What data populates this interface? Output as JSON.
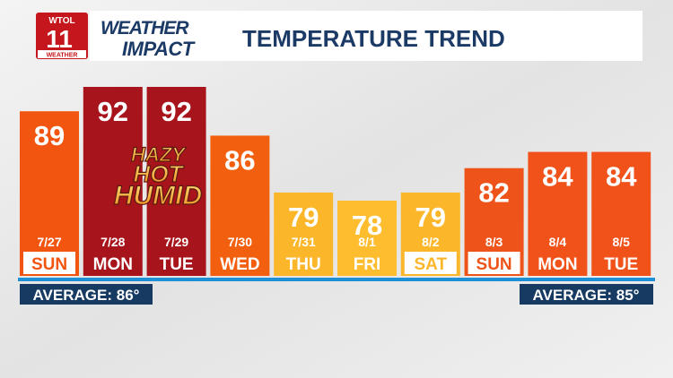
{
  "chart_data": {
    "type": "bar",
    "title": "TEMPERATURE TREND",
    "logo": {
      "station": "WTOL",
      "channel": "11",
      "sub": "WEATHER"
    },
    "brand": [
      "WEATHER",
      "IMPACT"
    ],
    "categories": [
      "7/27",
      "7/28",
      "7/29",
      "7/30",
      "7/31",
      "8/1",
      "8/2",
      "8/3",
      "8/4",
      "8/5"
    ],
    "days": [
      "SUN",
      "MON",
      "TUE",
      "WED",
      "THU",
      "FRI",
      "SAT",
      "SUN",
      "MON",
      "TUE"
    ],
    "boxed": [
      true,
      false,
      false,
      false,
      false,
      false,
      true,
      true,
      false,
      false
    ],
    "values": [
      89,
      92,
      92,
      86,
      79,
      78,
      79,
      82,
      84,
      84
    ],
    "colors": [
      "#f25510",
      "#a8141b",
      "#a8141b",
      "#f2600f",
      "#fcb62a",
      "#fdbd2f",
      "#fcb62a",
      "#ee5419",
      "#f0521a",
      "#f0521a"
    ],
    "annotation": [
      "HAZY",
      "HOT",
      "HUMID"
    ],
    "averages": [
      "AVERAGE: 86°",
      "AVERAGE: 85°"
    ]
  }
}
